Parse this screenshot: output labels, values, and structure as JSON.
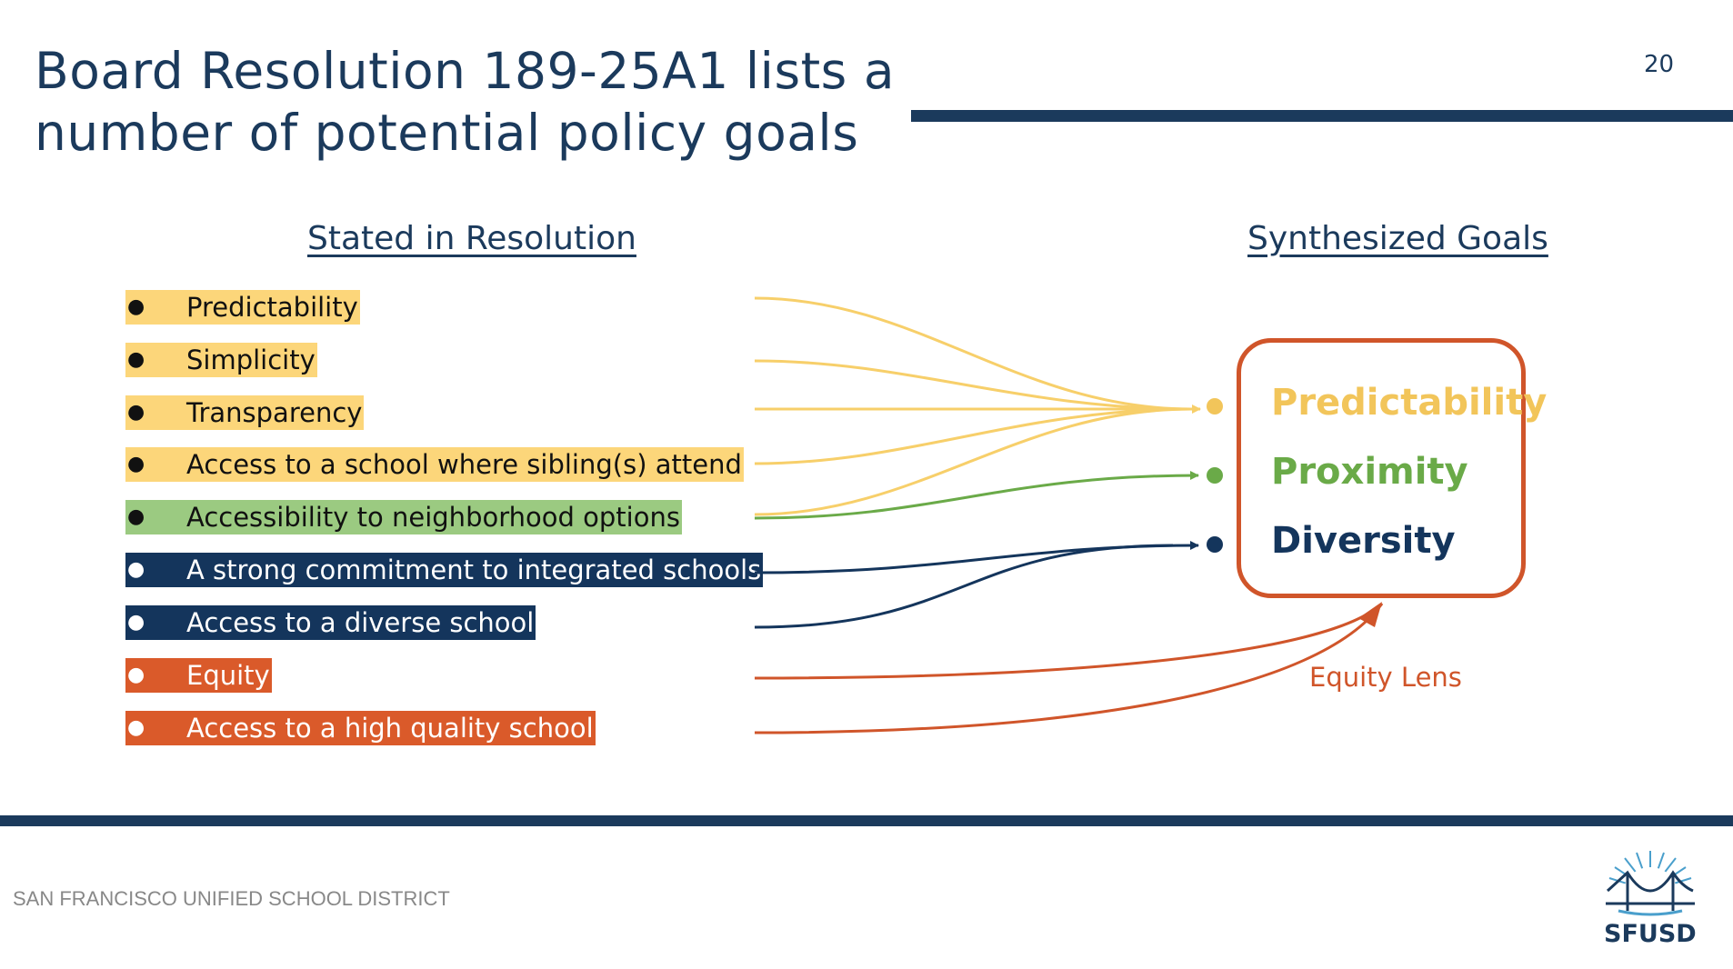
{
  "slide": {
    "title": "Board Resolution 189-25A1 lists a number of potential policy goals",
    "page_number": "20"
  },
  "left_column": {
    "heading": "Stated in Resolution",
    "items": [
      {
        "label": "Predictability",
        "color": "#fcd67a"
      },
      {
        "label": "Simplicity",
        "color": "#fcd67a"
      },
      {
        "label": "Transparency",
        "color": "#fcd67a"
      },
      {
        "label": "Access to a school where sibling(s) attend",
        "color": "#fcd67a"
      },
      {
        "label": "Accessibility to neighborhood options",
        "color": "#9bca81"
      },
      {
        "label": "A strong commitment to integrated schools",
        "color": "#14355c"
      },
      {
        "label": "Access to a diverse school",
        "color": "#14355c"
      },
      {
        "label": "Equity",
        "color": "#da5a2a"
      },
      {
        "label": "Access to a high quality school",
        "color": "#da5a2a"
      }
    ]
  },
  "right_column": {
    "heading": "Synthesized Goals",
    "goals": [
      {
        "label": "Predictability",
        "color": "#f2c55a"
      },
      {
        "label": "Proximity",
        "color": "#6aaa48"
      },
      {
        "label": "Diversity",
        "color": "#14355c"
      }
    ],
    "lens_label": "Equity Lens"
  },
  "footer": {
    "district": "SAN FRANCISCO UNIFIED SCHOOL DISTRICT",
    "logo_text": "SFUSD"
  }
}
